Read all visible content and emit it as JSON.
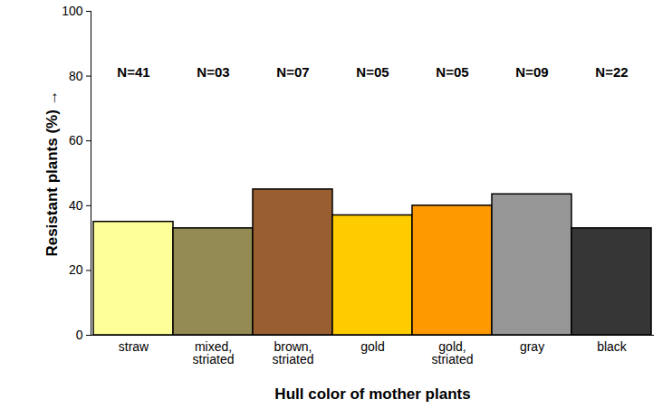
{
  "chart_data": {
    "type": "bar",
    "x_label": "Hull color of mother plants",
    "y_label": "Resistant plants (%)",
    "categories": [
      "straw",
      "mixed,\nstriated",
      "brown,\nstriated",
      "gold",
      "gold,\nstriated",
      "gray",
      "black"
    ],
    "values": [
      35,
      33,
      45,
      37,
      40,
      43.5,
      33
    ],
    "colors": [
      "#ffff99",
      "#948b54",
      "#9a5f30",
      "#ffcc00",
      "#ff9900",
      "#969696",
      "#363636"
    ],
    "annotations": [
      "N=41",
      "N=03",
      "N=07",
      "N=05",
      "N=05",
      "N=09",
      "N=22"
    ],
    "ylim": [
      0,
      100
    ],
    "yticks": [
      0,
      20,
      40,
      60,
      80,
      100
    ],
    "grid": false
  }
}
